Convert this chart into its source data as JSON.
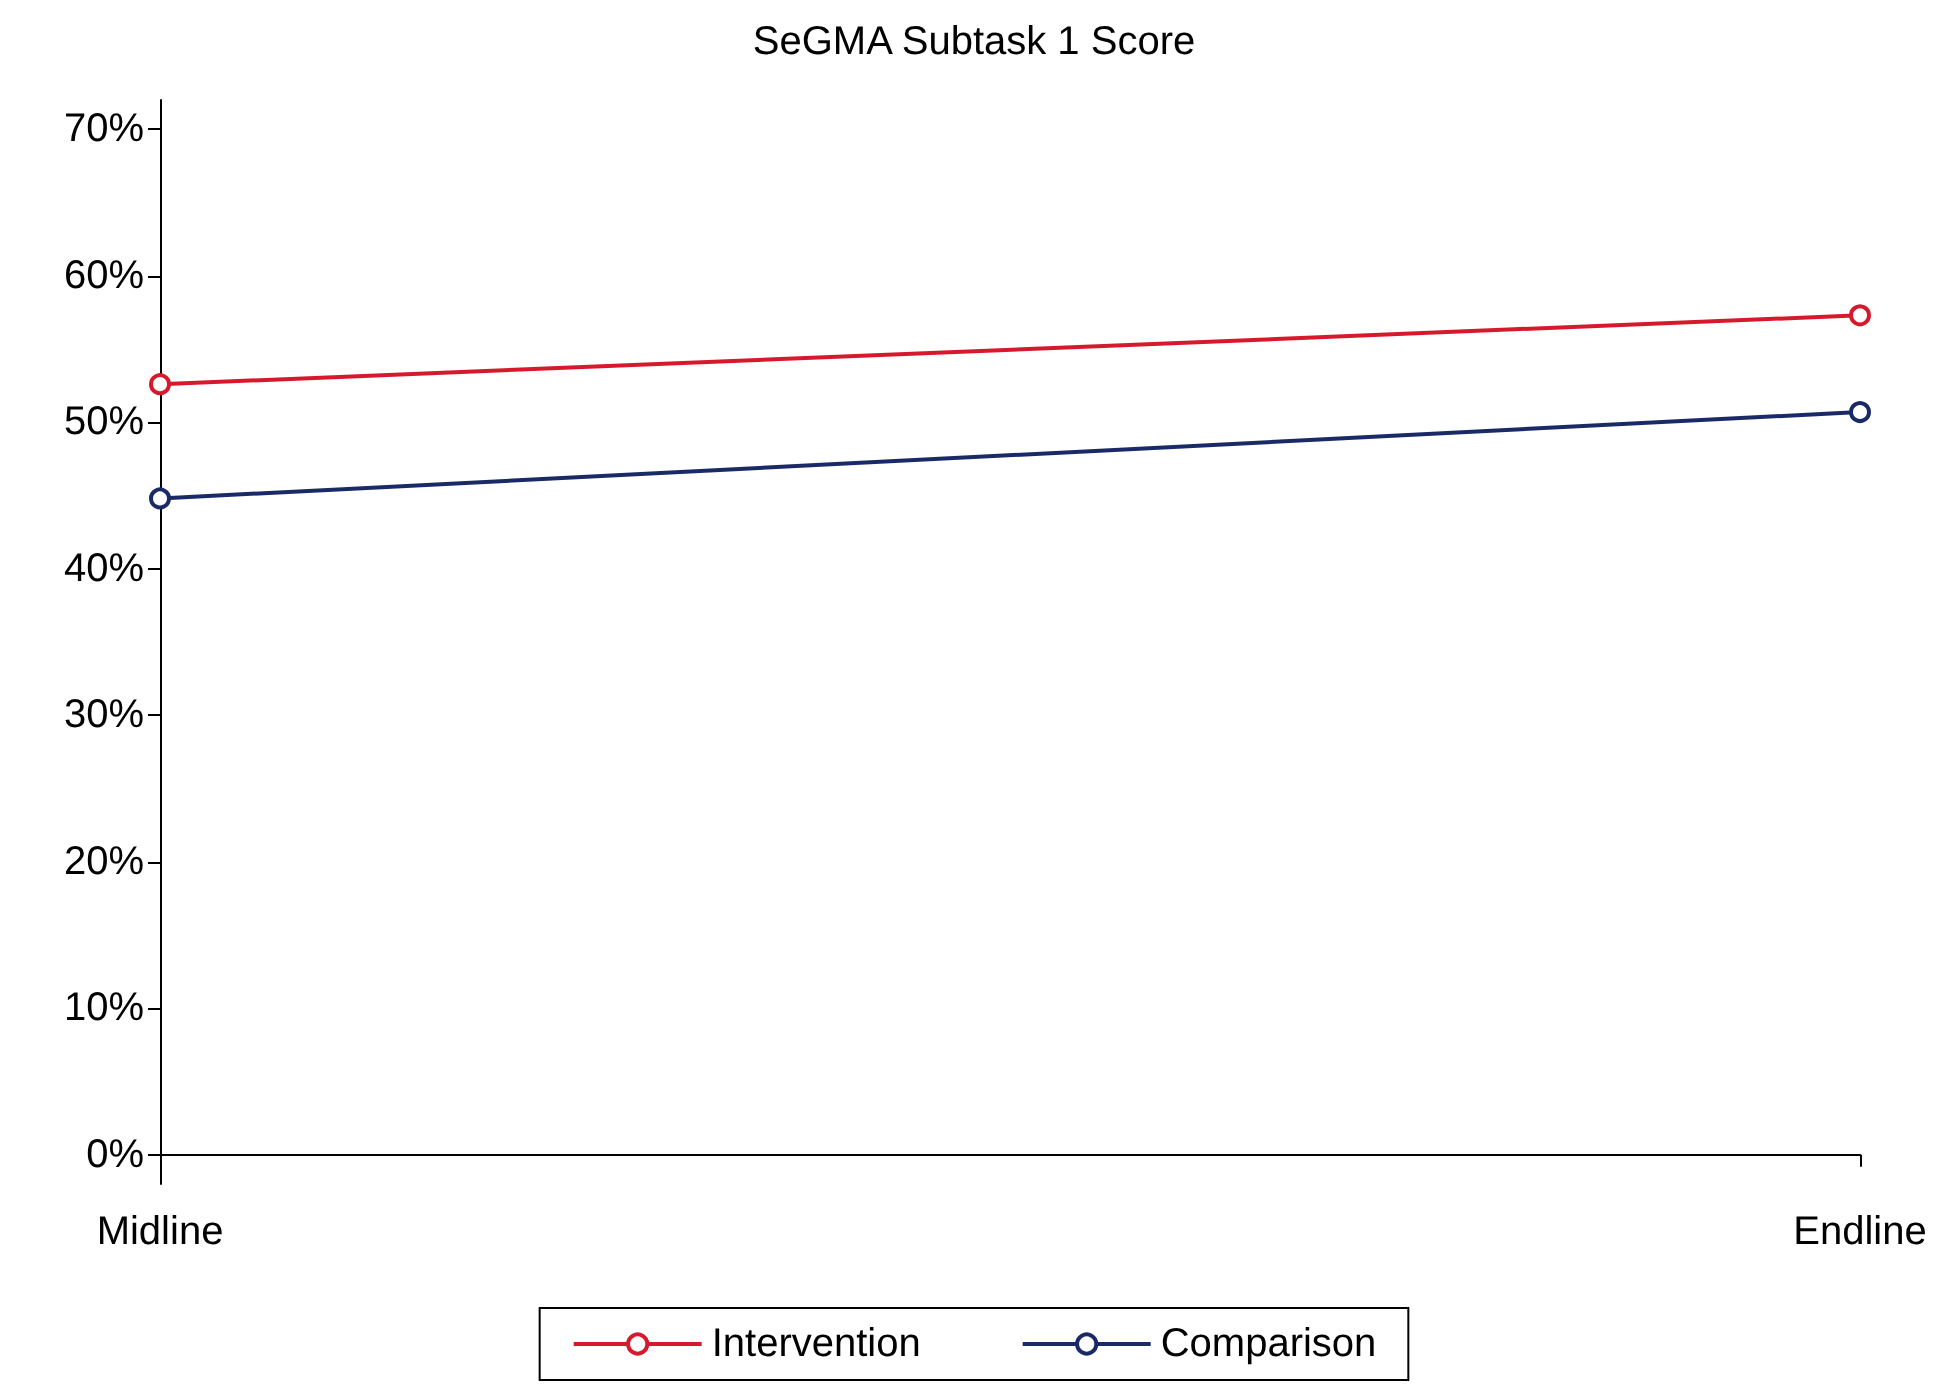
{
  "chart_data": {
    "type": "line",
    "title": "SeGMA Subtask 1 Score",
    "categories": [
      "Midline",
      "Endline"
    ],
    "series": [
      {
        "name": "Intervention",
        "color": "#d7192d",
        "values": [
          52.6,
          57.3
        ]
      },
      {
        "name": "Comparison",
        "color": "#1a2a66",
        "values": [
          44.8,
          50.7
        ]
      }
    ],
    "ylim": [
      -2,
      72
    ],
    "yticks": [
      {
        "value": 0,
        "label": "0%"
      },
      {
        "value": 10,
        "label": "10%"
      },
      {
        "value": 20,
        "label": "20%"
      },
      {
        "value": 30,
        "label": "30%"
      },
      {
        "value": 40,
        "label": "40%"
      },
      {
        "value": 50,
        "label": "50%"
      },
      {
        "value": 60,
        "label": "60%"
      },
      {
        "value": 70,
        "label": "70%"
      }
    ],
    "grid": false,
    "legend": "bottom",
    "marker": "circle",
    "line_style": "solid"
  }
}
